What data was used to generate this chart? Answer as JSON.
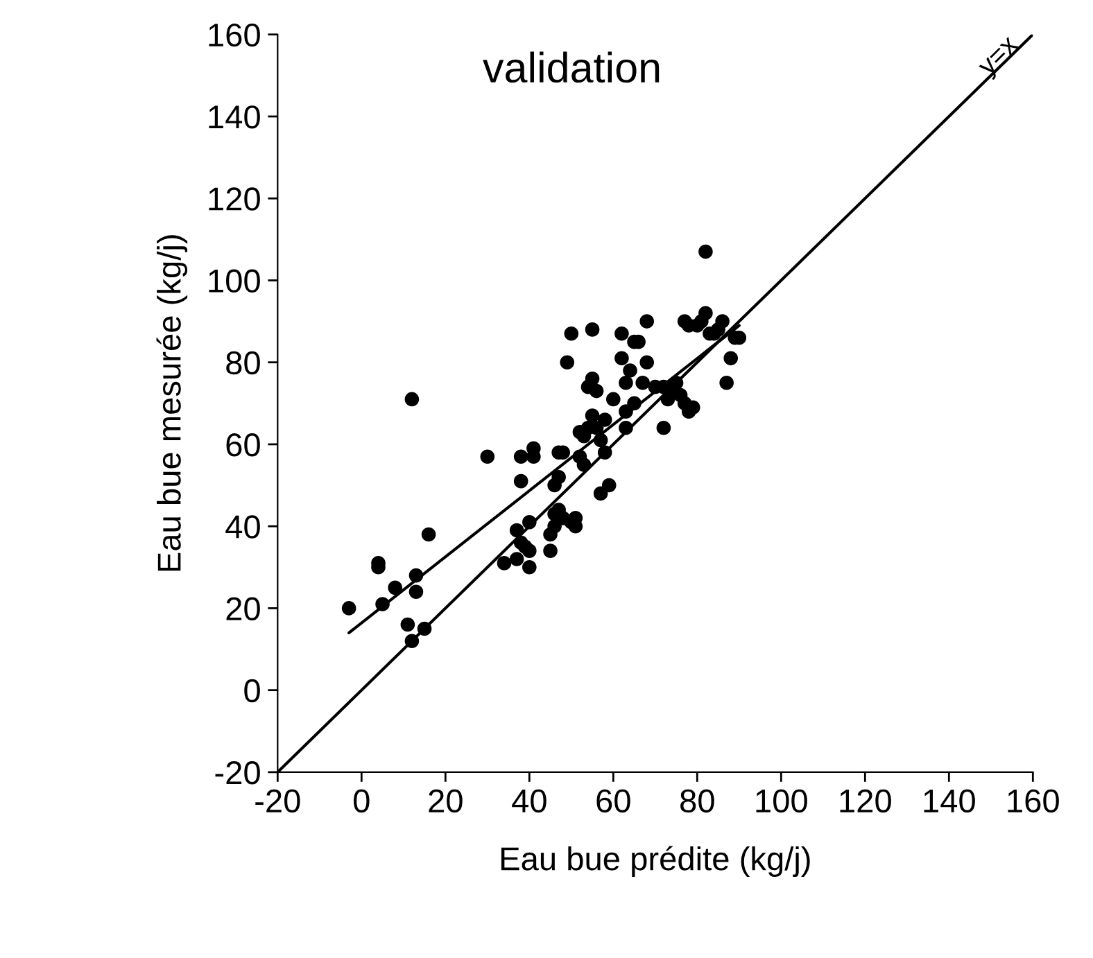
{
  "chart_data": {
    "type": "scatter",
    "title": "validation",
    "xlabel": "Eau bue prédite (kg/j)",
    "ylabel": "Eau bue mesurée (kg/j)",
    "xlim": [
      -20,
      160
    ],
    "ylim": [
      -20,
      160
    ],
    "xticks": [
      -20,
      0,
      20,
      40,
      60,
      80,
      100,
      120,
      140,
      160
    ],
    "yticks": [
      -20,
      0,
      20,
      40,
      60,
      80,
      100,
      120,
      140,
      160
    ],
    "grid": false,
    "legend": false,
    "marker": "circle",
    "annotations": [
      "y=x"
    ],
    "series": [
      {
        "color": "#000000",
        "x": [
          -3,
          4,
          4,
          5,
          8,
          11,
          12,
          13,
          13,
          12,
          15,
          16,
          30,
          34,
          37,
          37,
          38,
          38,
          38,
          39,
          40,
          40,
          40,
          41,
          41,
          45,
          45,
          46,
          46,
          46,
          47,
          47,
          47,
          48,
          48,
          49,
          50,
          50,
          51,
          51,
          52,
          52,
          53,
          53,
          54,
          54,
          55,
          55,
          55,
          56,
          56,
          57,
          57,
          58,
          58,
          59,
          60,
          62,
          62,
          63,
          63,
          63,
          64,
          65,
          65,
          66,
          67,
          68,
          68,
          70,
          72,
          72,
          73,
          74,
          75,
          76,
          77,
          77,
          78,
          78,
          79,
          80,
          81,
          82,
          82,
          83,
          84,
          85,
          86,
          87,
          88,
          89,
          90
        ],
        "values": [
          20,
          30,
          31,
          21,
          25,
          16,
          71,
          28,
          24,
          12,
          15,
          38,
          57,
          31,
          32,
          39,
          57,
          51,
          36,
          35,
          41,
          34,
          30,
          57,
          59,
          34,
          38,
          40,
          43,
          50,
          44,
          52,
          58,
          58,
          42,
          80,
          41,
          87,
          42,
          40,
          57,
          63,
          62,
          55,
          74,
          64,
          88,
          76,
          67,
          73,
          64,
          48,
          61,
          58,
          66,
          50,
          71,
          87,
          81,
          75,
          68,
          64,
          78,
          70,
          85,
          85,
          75,
          80,
          90,
          74,
          74,
          64,
          71,
          73,
          75,
          72,
          70,
          90,
          89,
          68,
          69,
          89,
          90,
          92,
          107,
          87,
          87,
          88,
          90,
          75,
          81,
          86,
          86
        ]
      },
      {
        "type": "line",
        "color": "#000000",
        "marker": "none",
        "x": [
          -20,
          160
        ],
        "values": [
          -20,
          160
        ]
      },
      {
        "type": "line",
        "color": "#000000",
        "marker": "none",
        "x": [
          -3,
          90
        ],
        "values": [
          14,
          89
        ]
      }
    ]
  }
}
